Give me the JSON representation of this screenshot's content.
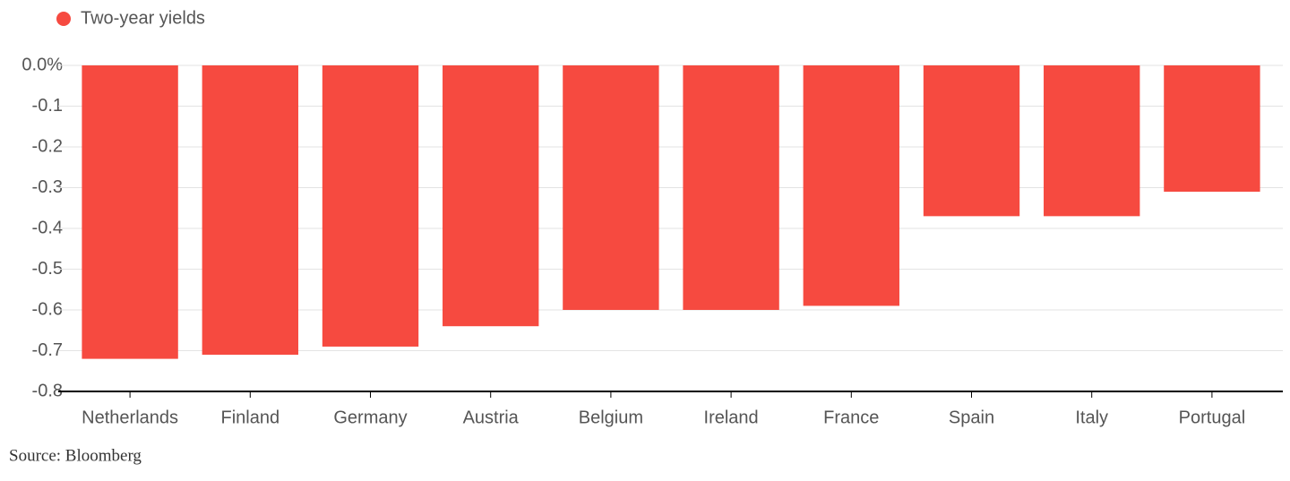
{
  "chart_data": {
    "type": "bar",
    "legend": "Two-year yields",
    "source": "Source: Bloomberg",
    "categories": [
      "Netherlands",
      "Finland",
      "Germany",
      "Austria",
      "Belgium",
      "Ireland",
      "France",
      "Spain",
      "Italy",
      "Portugal"
    ],
    "values": [
      -0.72,
      -0.71,
      -0.69,
      -0.64,
      -0.6,
      -0.6,
      -0.59,
      -0.37,
      -0.37,
      -0.31
    ],
    "color": "#f64a40",
    "ylim": [
      -0.8,
      0
    ],
    "yticks": [
      {
        "value": 0,
        "label": "0.0%"
      },
      -0.1,
      -0.2,
      -0.3,
      -0.4,
      -0.5,
      -0.6,
      -0.7,
      -0.8
    ],
    "grid": true
  }
}
